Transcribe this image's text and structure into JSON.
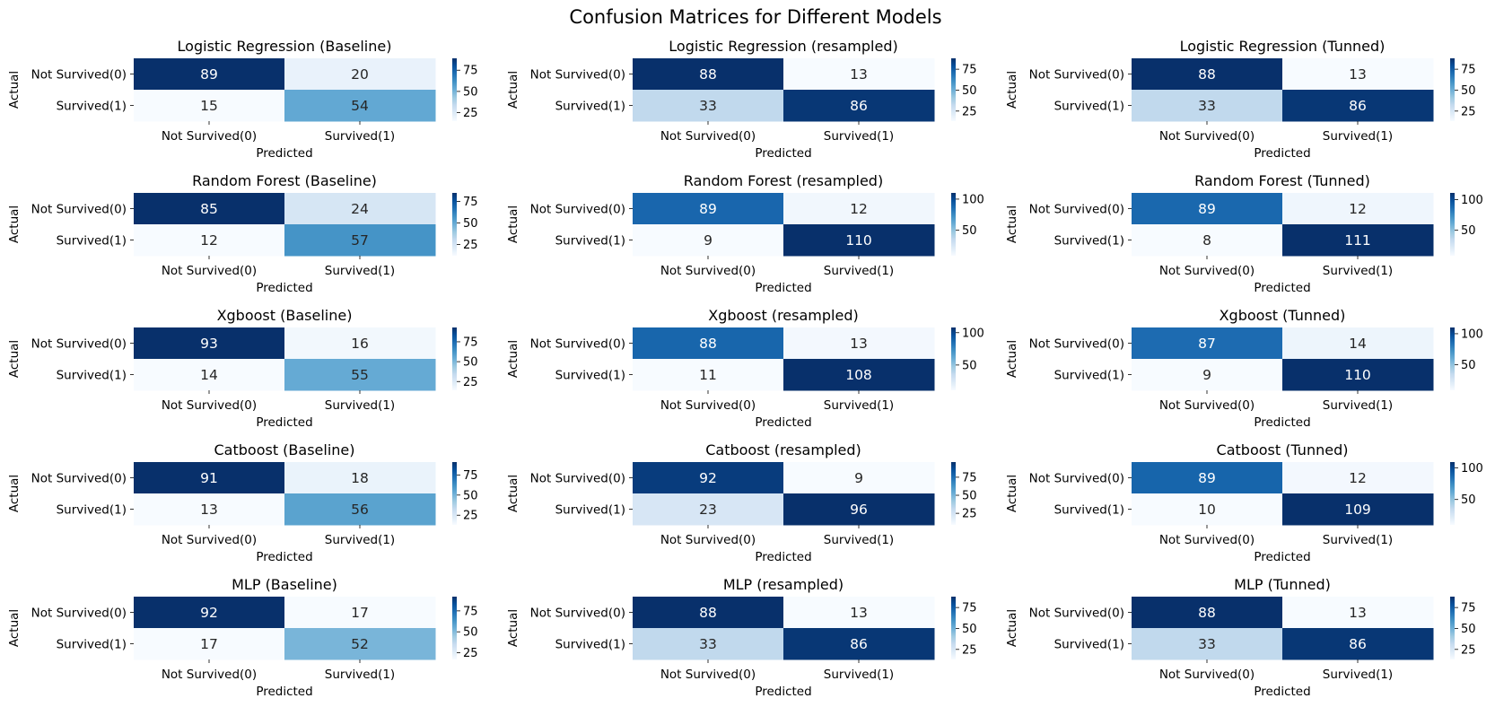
{
  "figure": {
    "suptitle": "Confusion Matrices for Different Models"
  },
  "chart_data": [
    {
      "type": "heatmap",
      "title": "Logistic Regression (Baseline)",
      "xlabel": "Predicted",
      "ylabel": "Actual",
      "x_ticklabels": [
        "Not Survived(0)",
        "Survived(1)"
      ],
      "y_ticklabels": [
        "Not Survived(0)",
        "Survived(1)"
      ],
      "values": [
        [
          89,
          20
        ],
        [
          15,
          54
        ]
      ],
      "colorbar_ticks": [
        25,
        50,
        75
      ],
      "vmin": 15,
      "vmax": 89,
      "cmap": "Blues"
    },
    {
      "type": "heatmap",
      "title": "Logistic Regression (resampled)",
      "xlabel": "Predicted",
      "ylabel": "Actual",
      "x_ticklabels": [
        "Not Survived(0)",
        "Survived(1)"
      ],
      "y_ticklabels": [
        "Not Survived(0)",
        "Survived(1)"
      ],
      "values": [
        [
          88,
          13
        ],
        [
          33,
          86
        ]
      ],
      "colorbar_ticks": [
        25,
        50,
        75
      ],
      "vmin": 13,
      "vmax": 88,
      "cmap": "Blues"
    },
    {
      "type": "heatmap",
      "title": "Logistic Regression (Tunned)",
      "xlabel": "Predicted",
      "ylabel": "Actual",
      "x_ticklabels": [
        "Not Survived(0)",
        "Survived(1)"
      ],
      "y_ticklabels": [
        "Not Survived(0)",
        "Survived(1)"
      ],
      "values": [
        [
          88,
          13
        ],
        [
          33,
          86
        ]
      ],
      "colorbar_ticks": [
        25,
        50,
        75
      ],
      "vmin": 13,
      "vmax": 88,
      "cmap": "Blues"
    },
    {
      "type": "heatmap",
      "title": "Random Forest (Baseline)",
      "xlabel": "Predicted",
      "ylabel": "Actual",
      "x_ticklabels": [
        "Not Survived(0)",
        "Survived(1)"
      ],
      "y_ticklabels": [
        "Not Survived(0)",
        "Survived(1)"
      ],
      "values": [
        [
          85,
          24
        ],
        [
          12,
          57
        ]
      ],
      "colorbar_ticks": [
        25,
        50,
        75
      ],
      "vmin": 12,
      "vmax": 85,
      "cmap": "Blues"
    },
    {
      "type": "heatmap",
      "title": "Random Forest (resampled)",
      "xlabel": "Predicted",
      "ylabel": "Actual",
      "x_ticklabels": [
        "Not Survived(0)",
        "Survived(1)"
      ],
      "y_ticklabels": [
        "Not Survived(0)",
        "Survived(1)"
      ],
      "values": [
        [
          89,
          12
        ],
        [
          9,
          110
        ]
      ],
      "colorbar_ticks": [
        50,
        100
      ],
      "vmin": 9,
      "vmax": 110,
      "cmap": "Blues"
    },
    {
      "type": "heatmap",
      "title": "Random Forest (Tunned)",
      "xlabel": "Predicted",
      "ylabel": "Actual",
      "x_ticklabels": [
        "Not Survived(0)",
        "Survived(1)"
      ],
      "y_ticklabels": [
        "Not Survived(0)",
        "Survived(1)"
      ],
      "values": [
        [
          89,
          12
        ],
        [
          8,
          111
        ]
      ],
      "colorbar_ticks": [
        50,
        100
      ],
      "vmin": 8,
      "vmax": 111,
      "cmap": "Blues"
    },
    {
      "type": "heatmap",
      "title": "Xgboost (Baseline)",
      "xlabel": "Predicted",
      "ylabel": "Actual",
      "x_ticklabels": [
        "Not Survived(0)",
        "Survived(1)"
      ],
      "y_ticklabels": [
        "Not Survived(0)",
        "Survived(1)"
      ],
      "values": [
        [
          93,
          16
        ],
        [
          14,
          55
        ]
      ],
      "colorbar_ticks": [
        25,
        50,
        75
      ],
      "vmin": 14,
      "vmax": 93,
      "cmap": "Blues"
    },
    {
      "type": "heatmap",
      "title": "Xgboost (resampled)",
      "xlabel": "Predicted",
      "ylabel": "Actual",
      "x_ticklabels": [
        "Not Survived(0)",
        "Survived(1)"
      ],
      "y_ticklabels": [
        "Not Survived(0)",
        "Survived(1)"
      ],
      "values": [
        [
          88,
          13
        ],
        [
          11,
          108
        ]
      ],
      "colorbar_ticks": [
        50,
        100
      ],
      "vmin": 11,
      "vmax": 108,
      "cmap": "Blues"
    },
    {
      "type": "heatmap",
      "title": "Xgboost (Tunned)",
      "xlabel": "Predicted",
      "ylabel": "Actual",
      "x_ticklabels": [
        "Not Survived(0)",
        "Survived(1)"
      ],
      "y_ticklabels": [
        "Not Survived(0)",
        "Survived(1)"
      ],
      "values": [
        [
          87,
          14
        ],
        [
          9,
          110
        ]
      ],
      "colorbar_ticks": [
        50,
        100
      ],
      "vmin": 9,
      "vmax": 110,
      "cmap": "Blues"
    },
    {
      "type": "heatmap",
      "title": "Catboost (Baseline)",
      "xlabel": "Predicted",
      "ylabel": "Actual",
      "x_ticklabels": [
        "Not Survived(0)",
        "Survived(1)"
      ],
      "y_ticklabels": [
        "Not Survived(0)",
        "Survived(1)"
      ],
      "values": [
        [
          91,
          18
        ],
        [
          13,
          56
        ]
      ],
      "colorbar_ticks": [
        25,
        50,
        75
      ],
      "vmin": 13,
      "vmax": 91,
      "cmap": "Blues"
    },
    {
      "type": "heatmap",
      "title": "Catboost (resampled)",
      "xlabel": "Predicted",
      "ylabel": "Actual",
      "x_ticklabels": [
        "Not Survived(0)",
        "Survived(1)"
      ],
      "y_ticklabels": [
        "Not Survived(0)",
        "Survived(1)"
      ],
      "values": [
        [
          92,
          9
        ],
        [
          23,
          96
        ]
      ],
      "colorbar_ticks": [
        25,
        50,
        75
      ],
      "vmin": 9,
      "vmax": 96,
      "cmap": "Blues"
    },
    {
      "type": "heatmap",
      "title": "Catboost (Tunned)",
      "xlabel": "Predicted",
      "ylabel": "Actual",
      "x_ticklabels": [
        "Not Survived(0)",
        "Survived(1)"
      ],
      "y_ticklabels": [
        "Not Survived(0)",
        "Survived(1)"
      ],
      "values": [
        [
          89,
          12
        ],
        [
          10,
          109
        ]
      ],
      "colorbar_ticks": [
        50,
        100
      ],
      "vmin": 10,
      "vmax": 109,
      "cmap": "Blues"
    },
    {
      "type": "heatmap",
      "title": "MLP (Baseline)",
      "xlabel": "Predicted",
      "ylabel": "Actual",
      "x_ticklabels": [
        "Not Survived(0)",
        "Survived(1)"
      ],
      "y_ticklabels": [
        "Not Survived(0)",
        "Survived(1)"
      ],
      "values": [
        [
          92,
          17
        ],
        [
          17,
          52
        ]
      ],
      "colorbar_ticks": [
        25,
        50,
        75
      ],
      "vmin": 17,
      "vmax": 92,
      "cmap": "Blues"
    },
    {
      "type": "heatmap",
      "title": "MLP (resampled)",
      "xlabel": "Predicted",
      "ylabel": "Actual",
      "x_ticklabels": [
        "Not Survived(0)",
        "Survived(1)"
      ],
      "y_ticklabels": [
        "Not Survived(0)",
        "Survived(1)"
      ],
      "values": [
        [
          88,
          13
        ],
        [
          33,
          86
        ]
      ],
      "colorbar_ticks": [
        25,
        50,
        75
      ],
      "vmin": 13,
      "vmax": 88,
      "cmap": "Blues"
    },
    {
      "type": "heatmap",
      "title": "MLP (Tunned)",
      "xlabel": "Predicted",
      "ylabel": "Actual",
      "x_ticklabels": [
        "Not Survived(0)",
        "Survived(1)"
      ],
      "y_ticklabels": [
        "Not Survived(0)",
        "Survived(1)"
      ],
      "values": [
        [
          88,
          13
        ],
        [
          33,
          86
        ]
      ],
      "colorbar_ticks": [
        25,
        50,
        75
      ],
      "vmin": 13,
      "vmax": 88,
      "cmap": "Blues"
    }
  ]
}
